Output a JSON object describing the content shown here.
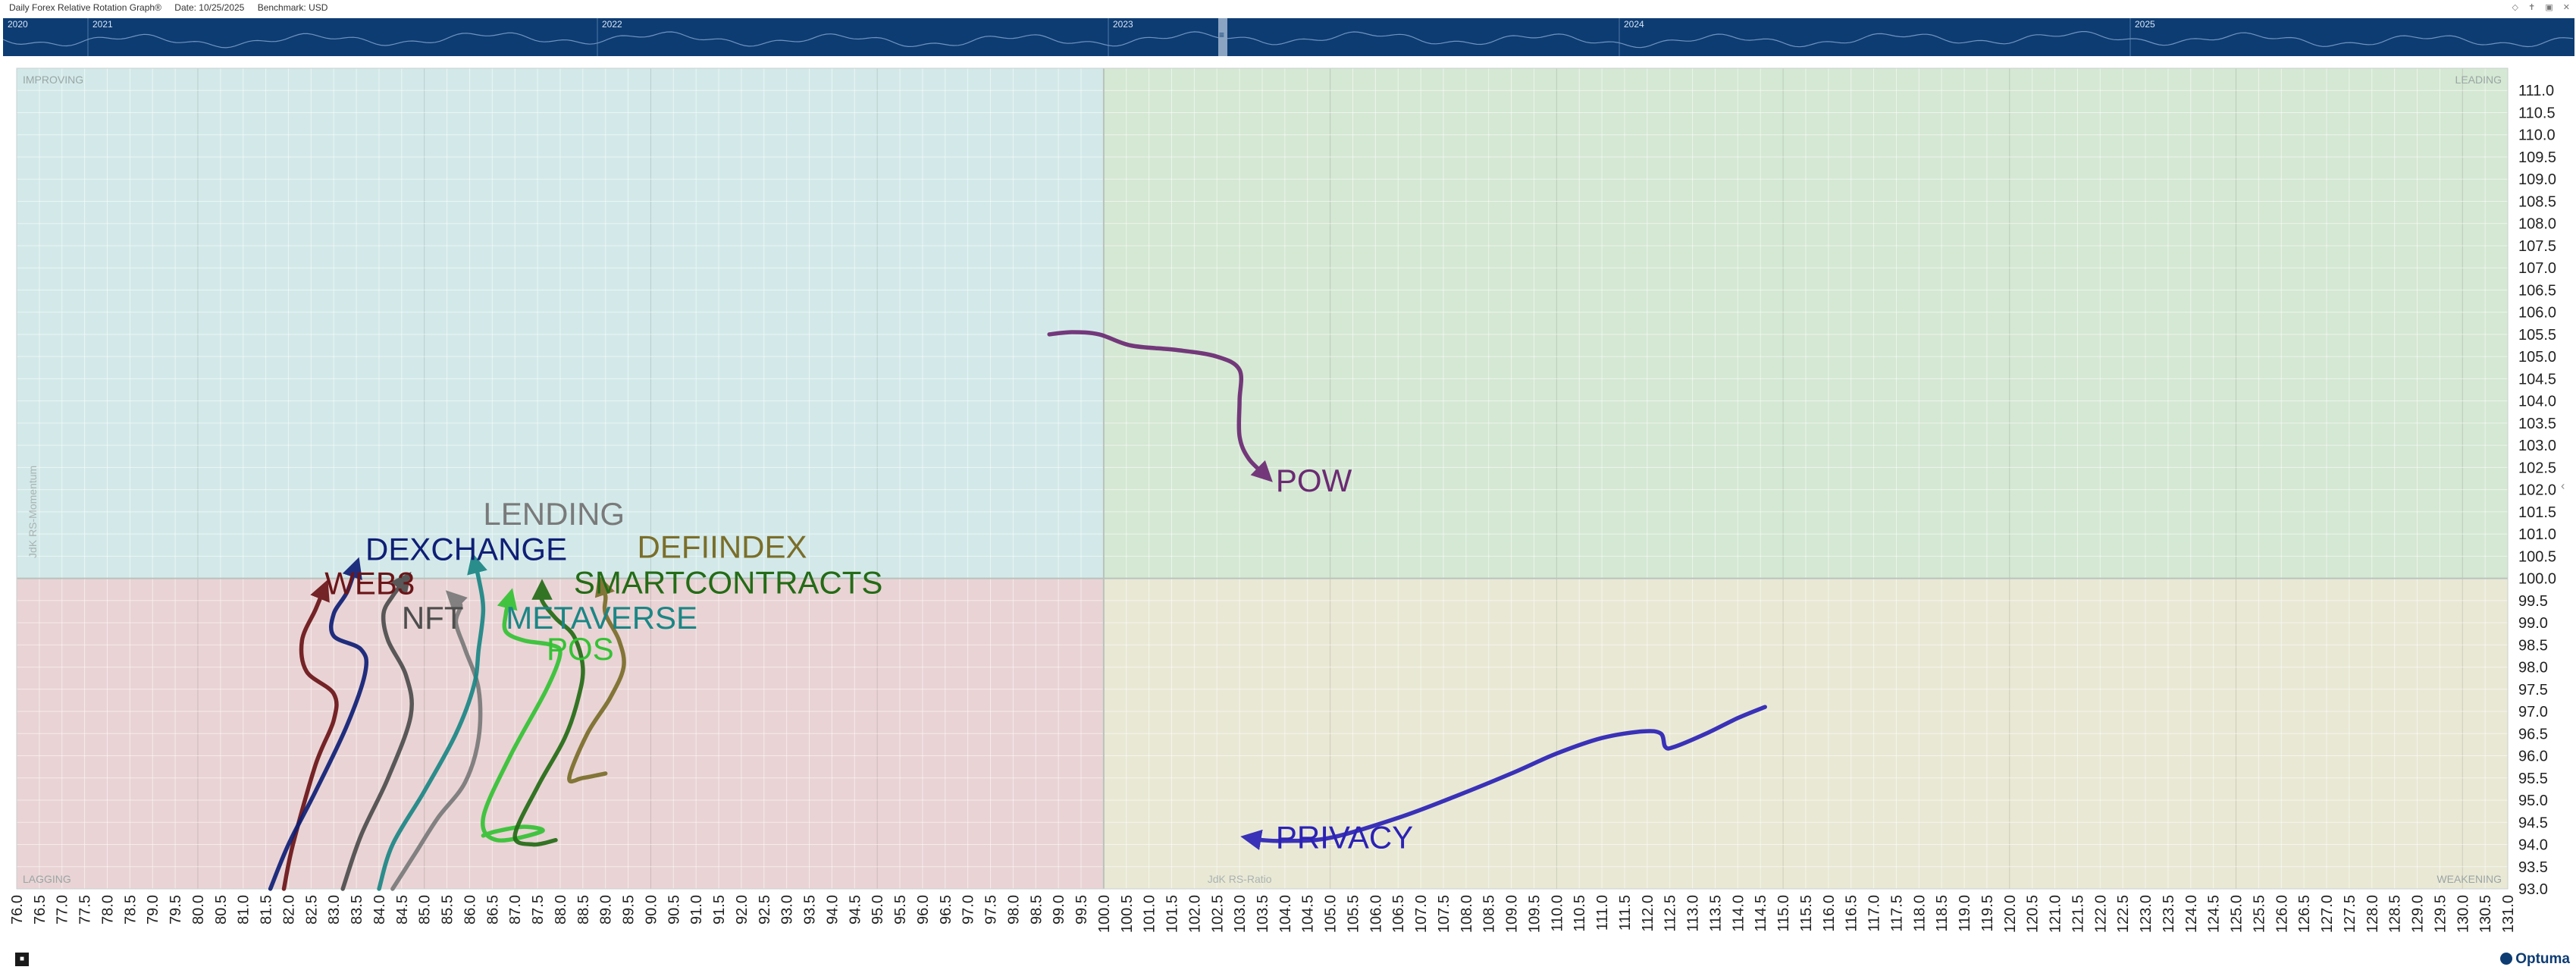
{
  "header": {
    "title": "Daily Forex Relative Rotation Graph®",
    "date_label": "Date: 10/25/2025",
    "benchmark_label": "Benchmark: USD"
  },
  "timeline": {
    "years": [
      "2020",
      "2021",
      "2022",
      "2023",
      "2024",
      "2025"
    ],
    "handle_label": "≡"
  },
  "bottom": {
    "brand": "Optuma",
    "corner_button": "■"
  },
  "colors": {
    "timeline_bg": "#0d3c73",
    "improving": "#d3e9e9",
    "leading": "#d4e8d3",
    "lagging": "#e9d3d4",
    "weakening": "#e9e8d4"
  },
  "chart_data": {
    "type": "scatter",
    "subtype": "relative-rotation-graph",
    "xlabel": "JdK RS-Ratio",
    "ylabel": "JdK RS-Momentum",
    "xlim": [
      76.0,
      131.0
    ],
    "ylim": [
      93.0,
      111.5
    ],
    "x_ticks": [
      76.0,
      76.5,
      77.0,
      77.5,
      78.0,
      78.5,
      79.0,
      79.5,
      80.0,
      80.5,
      81.0,
      81.5,
      82.0,
      82.5,
      83.0,
      83.5,
      84.0,
      84.5,
      85.0,
      85.5,
      86.0,
      86.5,
      87.0,
      87.5,
      88.0,
      88.5,
      89.0,
      89.5,
      90.0,
      90.5,
      91.0,
      91.5,
      92.0,
      92.5,
      93.0,
      93.5,
      94.0,
      94.5,
      95.0,
      95.5,
      96.0,
      96.5,
      97.0,
      97.5,
      98.0,
      98.5,
      99.0,
      99.5,
      100.0,
      100.5,
      101.0,
      101.5,
      102.0,
      102.5,
      103.0,
      103.5,
      104.0,
      104.5,
      105.0,
      105.5,
      106.0,
      106.5,
      107.0,
      107.5,
      108.0,
      108.5,
      109.0,
      109.5,
      110.0,
      110.5,
      111.0,
      111.5,
      112.0,
      112.5,
      113.0,
      113.5,
      114.0,
      114.5,
      115.0,
      115.5,
      116.0,
      116.5,
      117.0,
      117.5,
      118.0,
      118.5,
      119.0,
      119.5,
      120.0,
      120.5,
      121.0,
      121.5,
      122.0,
      122.5,
      123.0,
      123.5,
      124.0,
      124.5,
      125.0,
      125.5,
      126.0,
      126.5,
      127.0,
      127.5,
      128.0,
      128.5,
      129.0,
      129.5,
      130.0,
      130.5,
      131.0
    ],
    "y_ticks": [
      93.0,
      93.5,
      94.0,
      94.5,
      95.0,
      95.5,
      96.0,
      96.5,
      97.0,
      97.5,
      98.0,
      98.5,
      99.0,
      99.5,
      100.0,
      100.5,
      101.0,
      101.5,
      102.0,
      102.5,
      103.0,
      103.5,
      104.0,
      104.5,
      105.0,
      105.5,
      106.0,
      106.5,
      107.0,
      107.5,
      108.0,
      108.5,
      109.0,
      109.5,
      110.0,
      110.5,
      111.0
    ],
    "quadrants": {
      "improving": "IMPROVING",
      "leading": "LEADING",
      "lagging": "LAGGING",
      "weakening": "WEAKENING"
    },
    "grid": true,
    "series": [
      {
        "name": "POW",
        "color": "#6b2a73",
        "points": [
          [
            98.8,
            105.5
          ],
          [
            99.3,
            105.55
          ],
          [
            99.9,
            105.5
          ],
          [
            100.6,
            105.25
          ],
          [
            101.6,
            105.15
          ],
          [
            102.5,
            105.0
          ],
          [
            103.0,
            104.7
          ],
          [
            103.0,
            104.0
          ],
          [
            103.0,
            103.2
          ],
          [
            103.2,
            102.7
          ],
          [
            103.6,
            102.3
          ]
        ]
      },
      {
        "name": "PRIVACY",
        "color": "#2b22b5",
        "points": [
          [
            114.6,
            97.1
          ],
          [
            114.0,
            96.85
          ],
          [
            113.3,
            96.5
          ],
          [
            112.6,
            96.2
          ],
          [
            112.4,
            96.2
          ],
          [
            112.3,
            96.5
          ],
          [
            111.9,
            96.55
          ],
          [
            111.0,
            96.4
          ],
          [
            110.0,
            96.05
          ],
          [
            109.0,
            95.6
          ],
          [
            107.8,
            95.1
          ],
          [
            106.5,
            94.6
          ],
          [
            105.0,
            94.15
          ],
          [
            104.0,
            94.08
          ],
          [
            103.5,
            94.1
          ],
          [
            103.2,
            94.15
          ]
        ]
      },
      {
        "name": "WEB3",
        "color": "#6b1518",
        "points": [
          [
            81.9,
            93.0
          ],
          [
            82.1,
            94.0
          ],
          [
            82.6,
            95.8
          ],
          [
            83.0,
            96.8
          ],
          [
            83.0,
            97.4
          ],
          [
            82.4,
            97.9
          ],
          [
            82.3,
            98.6
          ],
          [
            82.6,
            99.3
          ],
          [
            82.8,
            99.8
          ]
        ]
      },
      {
        "name": "DEXCHANGE",
        "color": "#0f1f76",
        "points": [
          [
            81.6,
            93.0
          ],
          [
            82.0,
            94.0
          ],
          [
            82.6,
            95.2
          ],
          [
            83.3,
            96.7
          ],
          [
            83.7,
            97.9
          ],
          [
            83.6,
            98.4
          ],
          [
            83.0,
            98.7
          ],
          [
            83.0,
            99.2
          ],
          [
            83.3,
            99.7
          ],
          [
            83.5,
            100.3
          ]
        ]
      },
      {
        "name": "NFT",
        "color": "#4d4d4d",
        "points": [
          [
            83.2,
            93.0
          ],
          [
            83.6,
            94.2
          ],
          [
            84.2,
            95.5
          ],
          [
            84.7,
            96.9
          ],
          [
            84.6,
            97.8
          ],
          [
            84.2,
            98.6
          ],
          [
            84.1,
            99.2
          ],
          [
            84.3,
            99.6
          ],
          [
            84.6,
            100.0
          ]
        ]
      },
      {
        "name": "LENDING",
        "color": "#7a7a7a",
        "points": [
          [
            84.3,
            93.0
          ],
          [
            84.8,
            93.8
          ],
          [
            85.3,
            94.6
          ],
          [
            85.9,
            95.4
          ],
          [
            86.2,
            96.4
          ],
          [
            86.2,
            97.5
          ],
          [
            85.9,
            98.4
          ],
          [
            85.7,
            99.0
          ],
          [
            85.8,
            99.4
          ],
          [
            85.6,
            99.6
          ]
        ]
      },
      {
        "name": "METAVERSE",
        "color": "#1b8685",
        "points": [
          [
            84.0,
            93.0
          ],
          [
            84.3,
            94.0
          ],
          [
            85.0,
            95.2
          ],
          [
            85.7,
            96.5
          ],
          [
            86.1,
            97.6
          ],
          [
            86.2,
            98.4
          ],
          [
            86.3,
            99.3
          ],
          [
            86.2,
            100.0
          ],
          [
            86.1,
            100.4
          ]
        ]
      },
      {
        "name": "POS",
        "color": "#34c234",
        "points": [
          [
            86.3,
            94.2
          ],
          [
            86.6,
            94.3
          ],
          [
            87.2,
            94.4
          ],
          [
            87.6,
            94.3
          ],
          [
            86.6,
            94.1
          ],
          [
            86.3,
            94.6
          ],
          [
            86.9,
            96.0
          ],
          [
            87.7,
            97.5
          ],
          [
            88.0,
            98.3
          ],
          [
            87.8,
            98.5
          ],
          [
            87.2,
            98.6
          ],
          [
            86.8,
            98.8
          ],
          [
            86.8,
            99.2
          ],
          [
            86.9,
            99.6
          ]
        ]
      },
      {
        "name": "SMARTCONTRACTS",
        "color": "#246b16",
        "points": [
          [
            87.9,
            94.1
          ],
          [
            87.4,
            94.0
          ],
          [
            87.0,
            94.2
          ],
          [
            87.5,
            95.3
          ],
          [
            88.1,
            96.4
          ],
          [
            88.4,
            97.3
          ],
          [
            88.5,
            98.0
          ],
          [
            88.3,
            98.7
          ],
          [
            87.9,
            99.1
          ],
          [
            87.6,
            99.5
          ],
          [
            87.6,
            99.8
          ]
        ]
      },
      {
        "name": "DEFIINDEX",
        "color": "#7a6e2a",
        "points": [
          [
            89.0,
            95.6
          ],
          [
            88.5,
            95.5
          ],
          [
            88.2,
            95.5
          ],
          [
            88.6,
            96.5
          ],
          [
            89.1,
            97.3
          ],
          [
            89.4,
            98.0
          ],
          [
            89.3,
            98.6
          ],
          [
            89.0,
            99.2
          ],
          [
            89.0,
            99.6
          ],
          [
            88.9,
            99.9
          ]
        ]
      }
    ],
    "labels": [
      {
        "name": "POW",
        "at": [
          103.8,
          102.2
        ]
      },
      {
        "name": "PRIVACY",
        "at": [
          103.8,
          94.15
        ]
      },
      {
        "name": "WEB3",
        "at": [
          82.8,
          99.88
        ]
      },
      {
        "name": "DEXCHANGE",
        "at": [
          83.7,
          100.65
        ]
      },
      {
        "name": "NFT",
        "at": [
          84.5,
          99.1
        ]
      },
      {
        "name": "LENDING",
        "at": [
          86.3,
          101.45
        ]
      },
      {
        "name": "METAVERSE",
        "at": [
          86.8,
          99.1
        ]
      },
      {
        "name": "POS",
        "at": [
          87.7,
          98.4
        ]
      },
      {
        "name": "SMARTCONTRACTS",
        "at": [
          88.3,
          99.9
        ]
      },
      {
        "name": "DEFIINDEX",
        "at": [
          89.7,
          100.7
        ]
      }
    ]
  }
}
